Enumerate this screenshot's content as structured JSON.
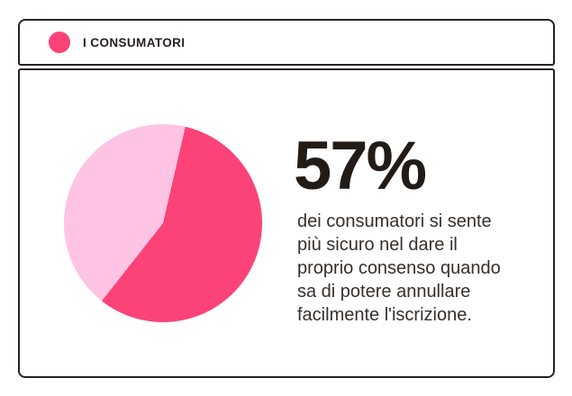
{
  "colors": {
    "accent": "#FC4377",
    "accent_light": "#FFC3E4",
    "ink": "#282120",
    "card_background": "#FFFFFF"
  },
  "header": {
    "label": "I CONSUMATORI"
  },
  "stat": {
    "value": "57%",
    "description_lines": [
      "dei consumatori si sente",
      "più sicuro nel dare il",
      "proprio consenso quando",
      "sa di potere annullare",
      "facilmente l'iscrizione."
    ]
  },
  "chart_data": {
    "type": "pie",
    "title": "I CONSUMATORI",
    "values": [
      57,
      43
    ],
    "labels": [
      "57%",
      ""
    ],
    "colors": [
      "#FC4377",
      "#FFC3E4"
    ],
    "start_angle_deg": 13,
    "legend": "none",
    "annotation": "57% dei consumatori si sente più sicuro nel dare il proprio consenso quando sa di potere annullare facilmente l'iscrizione."
  }
}
